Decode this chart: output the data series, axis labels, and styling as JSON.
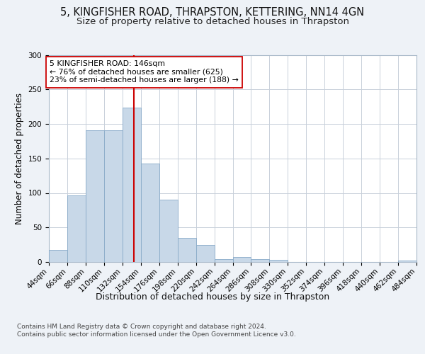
{
  "title1": "5, KINGFISHER ROAD, THRAPSTON, KETTERING, NN14 4GN",
  "title2": "Size of property relative to detached houses in Thrapston",
  "xlabel": "Distribution of detached houses by size in Thrapston",
  "ylabel": "Number of detached properties",
  "bin_edges": [
    44,
    66,
    88,
    110,
    132,
    154,
    176,
    198,
    220,
    242,
    264,
    286,
    308,
    330,
    352,
    374,
    396,
    418,
    440,
    462,
    484
  ],
  "bar_heights": [
    17,
    96,
    191,
    191,
    224,
    143,
    90,
    35,
    25,
    4,
    7,
    4,
    3,
    0,
    0,
    0,
    0,
    0,
    0,
    2
  ],
  "bar_color": "#c8d8e8",
  "bar_edge_color": "#88aac8",
  "property_size": 146,
  "vline_color": "#cc0000",
  "annotation_text": "5 KINGFISHER ROAD: 146sqm\n← 76% of detached houses are smaller (625)\n23% of semi-detached houses are larger (188) →",
  "annotation_box_color": "#ffffff",
  "annotation_box_edge_color": "#cc0000",
  "ylim": [
    0,
    300
  ],
  "yticks": [
    0,
    50,
    100,
    150,
    200,
    250,
    300
  ],
  "bg_color": "#eef2f7",
  "plot_bg_color": "#ffffff",
  "grid_color": "#c8d0da",
  "footer_text": "Contains HM Land Registry data © Crown copyright and database right 2024.\nContains public sector information licensed under the Open Government Licence v3.0.",
  "title1_fontsize": 10.5,
  "title2_fontsize": 9.5,
  "xlabel_fontsize": 9,
  "ylabel_fontsize": 8.5,
  "tick_fontsize": 7.5,
  "footer_fontsize": 6.5
}
